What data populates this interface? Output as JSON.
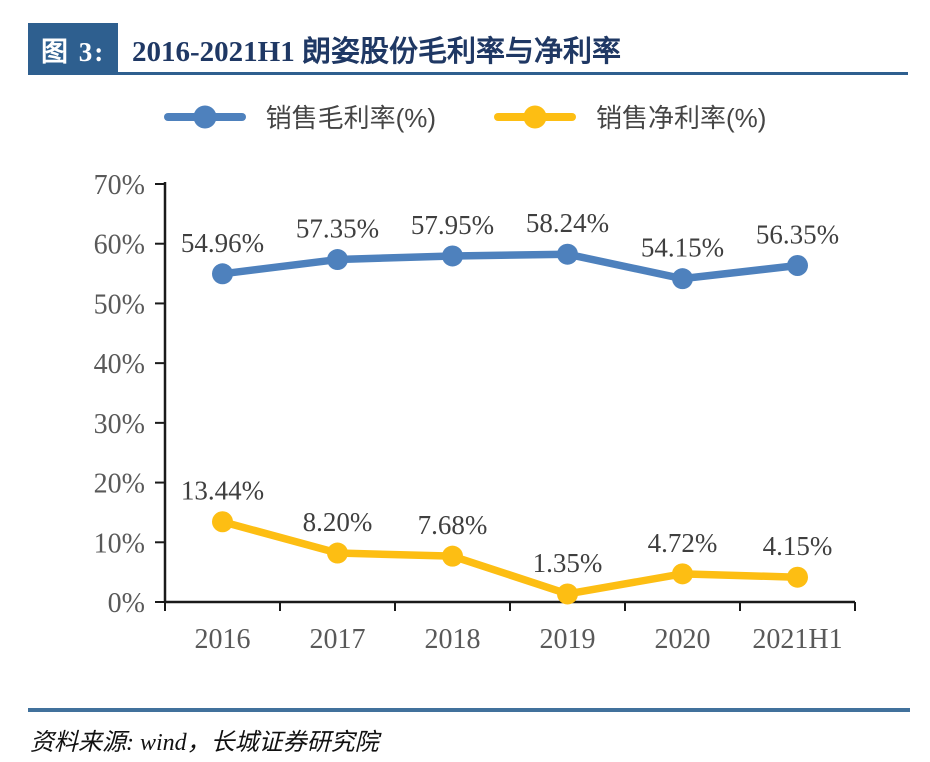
{
  "header": {
    "figure_label": "图 3:",
    "title": "2016-2021H1 朗姿股份毛利率与净利率"
  },
  "chart_data": {
    "type": "line",
    "categories": [
      "2016",
      "2017",
      "2018",
      "2019",
      "2020",
      "2021H1"
    ],
    "series": [
      {
        "name": "销售毛利率(%)",
        "color": "#4E81BD",
        "values": [
          54.96,
          57.35,
          57.95,
          58.24,
          54.15,
          56.35
        ]
      },
      {
        "name": "销售净利率(%)",
        "color": "#FDBE13",
        "values": [
          13.44,
          8.2,
          7.68,
          1.35,
          4.72,
          4.15
        ]
      }
    ],
    "ylim": [
      0,
      70
    ],
    "ytick_step": 10,
    "ytick_labels": [
      "0%",
      "10%",
      "20%",
      "30%",
      "40%",
      "50%",
      "60%",
      "70%"
    ],
    "xlabel": "",
    "ylabel": "",
    "grid": false,
    "legend_position": "top",
    "data_labels_shown": true
  },
  "footer": {
    "source": "资料来源: wind，长城证券研究院"
  },
  "colors": {
    "accent_blue": "#2E5F8F",
    "title_navy": "#1F3864",
    "footer_rule_blue": "#41719C",
    "axis": "#1A1A1A",
    "tick_label_gray": "#595959",
    "data_label_gray": "#3F3F3F"
  }
}
